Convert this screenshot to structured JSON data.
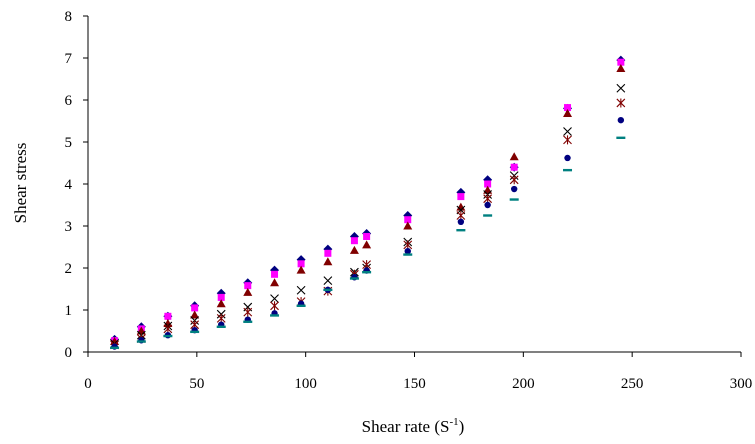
{
  "chart_data": {
    "type": "scatter",
    "title": "",
    "xlabel": "Shear rate (S",
    "xlabel_sup": "-1",
    "xlabel_close": ")",
    "ylabel": "Shear stress",
    "xlim": [
      0,
      300
    ],
    "ylim": [
      0,
      8
    ],
    "x_ticks": [
      0,
      50,
      100,
      150,
      200,
      250,
      300
    ],
    "y_ticks": [
      0,
      1,
      2,
      3,
      4,
      5,
      6,
      7,
      8
    ],
    "grid": false,
    "x": [
      12.2,
      24.5,
      36.7,
      49.0,
      61.2,
      73.4,
      85.7,
      97.9,
      110.2,
      122.4,
      128.0,
      146.9,
      171.3,
      183.6,
      195.8,
      220.3,
      244.8
    ],
    "series": [
      {
        "marker": "diamond",
        "color": "#000080",
        "values": [
          0.3,
          0.6,
          0.85,
          1.1,
          1.4,
          1.65,
          1.95,
          2.2,
          2.45,
          2.75,
          2.82,
          3.25,
          3.8,
          4.1,
          4.4,
          5.8,
          6.95
        ]
      },
      {
        "marker": "square",
        "color": "#ff00ff",
        "values": [
          0.27,
          0.55,
          0.85,
          1.05,
          1.3,
          1.58,
          1.85,
          2.1,
          2.35,
          2.65,
          2.75,
          3.15,
          3.7,
          4.0,
          4.4,
          5.82,
          6.9
        ]
      },
      {
        "marker": "triangle",
        "color": "#800000",
        "values": [
          0.25,
          0.5,
          0.68,
          0.88,
          1.15,
          1.42,
          1.65,
          1.95,
          2.15,
          2.42,
          2.55,
          3.0,
          3.45,
          3.85,
          4.65,
          5.68,
          6.75
        ]
      },
      {
        "marker": "x",
        "color": "#000000",
        "values": [
          0.2,
          0.4,
          0.62,
          0.75,
          0.9,
          1.07,
          1.27,
          1.47,
          1.7,
          1.9,
          2.0,
          2.62,
          3.38,
          3.75,
          4.2,
          5.25,
          6.28
        ]
      },
      {
        "marker": "star",
        "color": "#800000",
        "values": [
          0.17,
          0.32,
          0.55,
          0.65,
          0.8,
          0.95,
          1.1,
          1.2,
          1.45,
          1.85,
          2.08,
          2.55,
          3.25,
          3.65,
          4.1,
          5.05,
          5.93
        ]
      },
      {
        "marker": "circle",
        "color": "#000080",
        "values": [
          0.13,
          0.28,
          0.4,
          0.52,
          0.65,
          0.77,
          0.92,
          1.15,
          1.48,
          1.78,
          1.94,
          2.4,
          3.1,
          3.5,
          3.88,
          4.62,
          5.52
        ]
      },
      {
        "marker": "dash",
        "color": "#008080",
        "values": [
          0.1,
          0.25,
          0.38,
          0.48,
          0.6,
          0.72,
          0.87,
          1.1,
          1.48,
          1.75,
          1.9,
          2.32,
          2.9,
          3.25,
          3.63,
          4.33,
          5.1
        ]
      }
    ]
  }
}
